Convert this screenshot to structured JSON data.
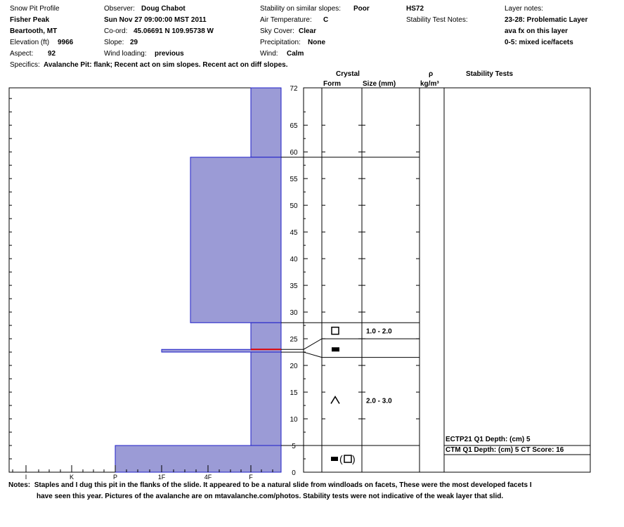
{
  "header": {
    "profile_title": "Snow Pit Profile",
    "location": "Fisher Peak",
    "range": "Beartooth, MT",
    "elevation_label": "Elevation (ft)",
    "elevation": "9966",
    "aspect_label": "Aspect:",
    "aspect": "92",
    "observer_label": "Observer:",
    "observer": "Doug Chabot",
    "datetime": "Sun Nov 27 09:00:00 MST 2011",
    "coord_label": "Co-ord:",
    "coord": "45.06691 N 109.95738 W",
    "slope_label": "Slope:",
    "slope": "29",
    "wind_loading_label": "Wind loading:",
    "wind_loading": "previous",
    "stability_label": "Stability on similar slopes:",
    "stability": "Poor",
    "air_temp_label": "Air Temperature:",
    "air_temp": "C",
    "sky_label": "Sky Cover:",
    "sky": "Clear",
    "precip_label": "Precipitation:",
    "precip": "None",
    "wind_label": "Wind:",
    "wind": "Calm",
    "hs": "HS72",
    "stability_notes_label": "Stability Test Notes:",
    "layer_notes_label": "Layer notes:",
    "layer_notes": [
      "23-28: Problematic Layer",
      "ava fx on this layer",
      "0-5: mixed ice/facets"
    ],
    "specifics_label": "Specifics:",
    "specifics": "Avalanche Pit: flank; Recent act on sim slopes. Recent act on diff slopes."
  },
  "table_headers": {
    "crystal": "Crystal",
    "form": "Form",
    "size": "Size (mm)",
    "rho": "ρ",
    "density_unit": "kg/m³",
    "stability_tests": "Stability Tests"
  },
  "chart_data": {
    "type": "area",
    "title": "Snow Pit Profile",
    "y_axis": {
      "label": "",
      "range": [
        0,
        72
      ],
      "ticks": [
        0,
        5,
        10,
        15,
        20,
        25,
        30,
        35,
        40,
        45,
        50,
        55,
        60,
        65,
        72
      ]
    },
    "hardness_scale": [
      "I",
      "K",
      "P",
      "1F",
      "4F",
      "F"
    ],
    "hardness_profile": [
      {
        "top": 72,
        "bottom": 59,
        "hardness": "F"
      },
      {
        "top": 59,
        "bottom": 28,
        "hardness": "4F-"
      },
      {
        "top": 28,
        "bottom": 23,
        "hardness": "F"
      },
      {
        "top": 23,
        "bottom": 22.5,
        "hardness": "1F"
      },
      {
        "top": 22.5,
        "bottom": 5,
        "hardness": "F"
      },
      {
        "top": 5,
        "bottom": 0,
        "hardness": "P"
      }
    ],
    "critical_layer_depth": 23,
    "layer_boundaries": [
      59,
      28,
      5
    ],
    "crystal_layers": [
      {
        "symbol": "□",
        "size": "1.0 - 2.0",
        "height": 26.5
      },
      {
        "symbol": "■",
        "size": "",
        "height": 23
      },
      {
        "symbol": "Λ",
        "size": "2.0 - 3.0",
        "height": 13.5
      },
      {
        "symbol": "■(□)",
        "size": "",
        "height": 2.5
      }
    ],
    "stability_tests": [
      "ECTP21 Q1 Depth: (cm) 5",
      "CTM Q1 Depth: (cm) 5 CT Score: 16"
    ]
  },
  "notes": {
    "label": "Notes:",
    "line1": "Staples and I dug this pit in the flanks of the slide.  It appeared to be a natural slide from windloads on facets,  These were the most developed facets I",
    "line2": "have seen this year.  Pictures of the avalanche are on mtavalanche.com/photos. Stability tests were not indicative of the weak layer that slid."
  },
  "colors": {
    "fill": "#9b9bd6",
    "stroke": "#1f1fc8",
    "critical": "#e00000"
  }
}
